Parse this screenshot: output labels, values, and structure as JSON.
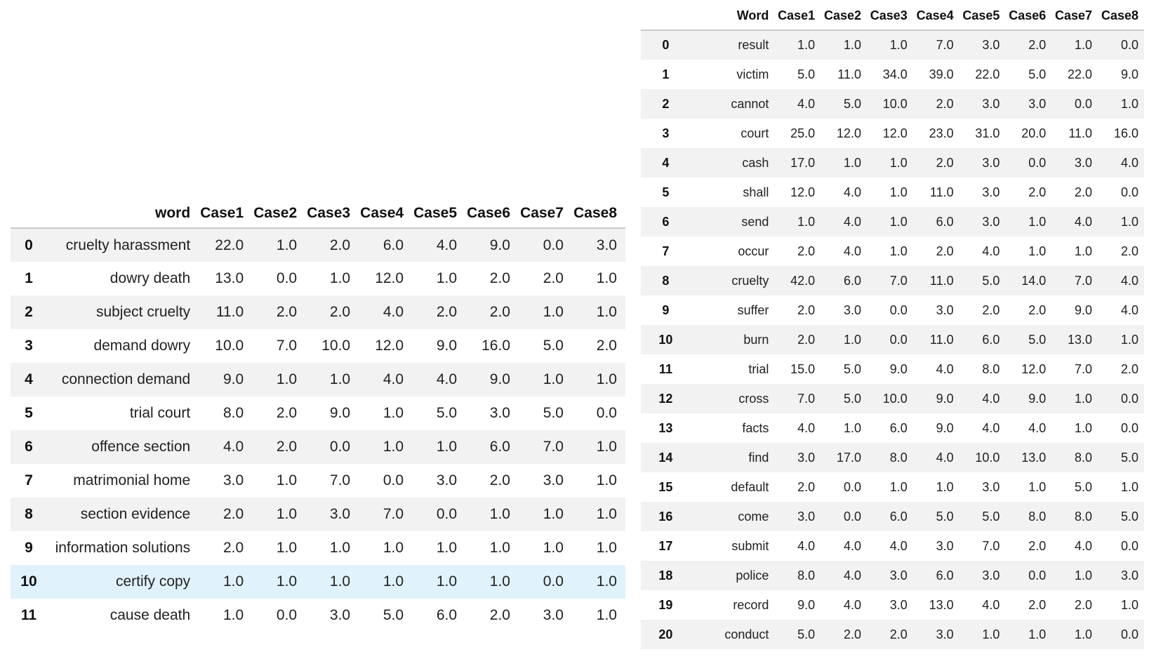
{
  "left_table": {
    "headers": [
      "",
      "word",
      "Case1",
      "Case2",
      "Case3",
      "Case4",
      "Case5",
      "Case6",
      "Case7",
      "Case8"
    ],
    "rows": [
      {
        "idx": "0",
        "cells": [
          "cruelty harassment",
          "22.0",
          "1.0",
          "2.0",
          "6.0",
          "4.0",
          "9.0",
          "0.0",
          "3.0"
        ]
      },
      {
        "idx": "1",
        "cells": [
          "dowry death",
          "13.0",
          "0.0",
          "1.0",
          "12.0",
          "1.0",
          "2.0",
          "2.0",
          "1.0"
        ]
      },
      {
        "idx": "2",
        "cells": [
          "subject cruelty",
          "11.0",
          "2.0",
          "2.0",
          "4.0",
          "2.0",
          "2.0",
          "1.0",
          "1.0"
        ]
      },
      {
        "idx": "3",
        "cells": [
          "demand dowry",
          "10.0",
          "7.0",
          "10.0",
          "12.0",
          "9.0",
          "16.0",
          "5.0",
          "2.0"
        ]
      },
      {
        "idx": "4",
        "cells": [
          "connection demand",
          "9.0",
          "1.0",
          "1.0",
          "4.0",
          "4.0",
          "9.0",
          "1.0",
          "1.0"
        ]
      },
      {
        "idx": "5",
        "cells": [
          "trial court",
          "8.0",
          "2.0",
          "9.0",
          "1.0",
          "5.0",
          "3.0",
          "5.0",
          "0.0"
        ]
      },
      {
        "idx": "6",
        "cells": [
          "offence section",
          "4.0",
          "2.0",
          "0.0",
          "1.0",
          "1.0",
          "6.0",
          "7.0",
          "1.0"
        ]
      },
      {
        "idx": "7",
        "cells": [
          "matrimonial home",
          "3.0",
          "1.0",
          "7.0",
          "0.0",
          "3.0",
          "2.0",
          "3.0",
          "1.0"
        ]
      },
      {
        "idx": "8",
        "cells": [
          "section evidence",
          "2.0",
          "1.0",
          "3.0",
          "7.0",
          "0.0",
          "1.0",
          "1.0",
          "1.0"
        ]
      },
      {
        "idx": "9",
        "cells": [
          "information solutions",
          "2.0",
          "1.0",
          "1.0",
          "1.0",
          "1.0",
          "1.0",
          "1.0",
          "1.0"
        ]
      },
      {
        "idx": "10",
        "cells": [
          "certify copy",
          "1.0",
          "1.0",
          "1.0",
          "1.0",
          "1.0",
          "1.0",
          "0.0",
          "1.0"
        ],
        "highlight": true
      },
      {
        "idx": "11",
        "cells": [
          "cause death",
          "1.0",
          "0.0",
          "3.0",
          "5.0",
          "6.0",
          "2.0",
          "3.0",
          "1.0"
        ]
      }
    ]
  },
  "right_table": {
    "headers": [
      "",
      "Word",
      "Case1",
      "Case2",
      "Case3",
      "Case4",
      "Case5",
      "Case6",
      "Case7",
      "Case8"
    ],
    "rows": [
      {
        "idx": "0",
        "cells": [
          "result",
          "1.0",
          "1.0",
          "1.0",
          "7.0",
          "3.0",
          "2.0",
          "1.0",
          "0.0"
        ]
      },
      {
        "idx": "1",
        "cells": [
          "victim",
          "5.0",
          "11.0",
          "34.0",
          "39.0",
          "22.0",
          "5.0",
          "22.0",
          "9.0"
        ]
      },
      {
        "idx": "2",
        "cells": [
          "cannot",
          "4.0",
          "5.0",
          "10.0",
          "2.0",
          "3.0",
          "3.0",
          "0.0",
          "1.0"
        ]
      },
      {
        "idx": "3",
        "cells": [
          "court",
          "25.0",
          "12.0",
          "12.0",
          "23.0",
          "31.0",
          "20.0",
          "11.0",
          "16.0"
        ]
      },
      {
        "idx": "4",
        "cells": [
          "cash",
          "17.0",
          "1.0",
          "1.0",
          "2.0",
          "3.0",
          "0.0",
          "3.0",
          "4.0"
        ]
      },
      {
        "idx": "5",
        "cells": [
          "shall",
          "12.0",
          "4.0",
          "1.0",
          "11.0",
          "3.0",
          "2.0",
          "2.0",
          "0.0"
        ]
      },
      {
        "idx": "6",
        "cells": [
          "send",
          "1.0",
          "4.0",
          "1.0",
          "6.0",
          "3.0",
          "1.0",
          "4.0",
          "1.0"
        ]
      },
      {
        "idx": "7",
        "cells": [
          "occur",
          "2.0",
          "4.0",
          "1.0",
          "2.0",
          "4.0",
          "1.0",
          "1.0",
          "2.0"
        ]
      },
      {
        "idx": "8",
        "cells": [
          "cruelty",
          "42.0",
          "6.0",
          "7.0",
          "11.0",
          "5.0",
          "14.0",
          "7.0",
          "4.0"
        ]
      },
      {
        "idx": "9",
        "cells": [
          "suffer",
          "2.0",
          "3.0",
          "0.0",
          "3.0",
          "2.0",
          "2.0",
          "9.0",
          "4.0"
        ]
      },
      {
        "idx": "10",
        "cells": [
          "burn",
          "2.0",
          "1.0",
          "0.0",
          "11.0",
          "6.0",
          "5.0",
          "13.0",
          "1.0"
        ]
      },
      {
        "idx": "11",
        "cells": [
          "trial",
          "15.0",
          "5.0",
          "9.0",
          "4.0",
          "8.0",
          "12.0",
          "7.0",
          "2.0"
        ]
      },
      {
        "idx": "12",
        "cells": [
          "cross",
          "7.0",
          "5.0",
          "10.0",
          "9.0",
          "4.0",
          "9.0",
          "1.0",
          "0.0"
        ]
      },
      {
        "idx": "13",
        "cells": [
          "facts",
          "4.0",
          "1.0",
          "6.0",
          "9.0",
          "4.0",
          "4.0",
          "1.0",
          "0.0"
        ]
      },
      {
        "idx": "14",
        "cells": [
          "find",
          "3.0",
          "17.0",
          "8.0",
          "4.0",
          "10.0",
          "13.0",
          "8.0",
          "5.0"
        ]
      },
      {
        "idx": "15",
        "cells": [
          "default",
          "2.0",
          "0.0",
          "1.0",
          "1.0",
          "3.0",
          "1.0",
          "5.0",
          "1.0"
        ]
      },
      {
        "idx": "16",
        "cells": [
          "come",
          "3.0",
          "0.0",
          "6.0",
          "5.0",
          "5.0",
          "8.0",
          "8.0",
          "5.0"
        ]
      },
      {
        "idx": "17",
        "cells": [
          "submit",
          "4.0",
          "4.0",
          "4.0",
          "3.0",
          "7.0",
          "2.0",
          "4.0",
          "0.0"
        ]
      },
      {
        "idx": "18",
        "cells": [
          "police",
          "8.0",
          "4.0",
          "3.0",
          "6.0",
          "3.0",
          "0.0",
          "1.0",
          "3.0"
        ]
      },
      {
        "idx": "19",
        "cells": [
          "record",
          "9.0",
          "4.0",
          "3.0",
          "13.0",
          "4.0",
          "2.0",
          "2.0",
          "1.0"
        ]
      },
      {
        "idx": "20",
        "cells": [
          "conduct",
          "5.0",
          "2.0",
          "2.0",
          "3.0",
          "1.0",
          "1.0",
          "1.0",
          "0.0"
        ]
      }
    ]
  }
}
